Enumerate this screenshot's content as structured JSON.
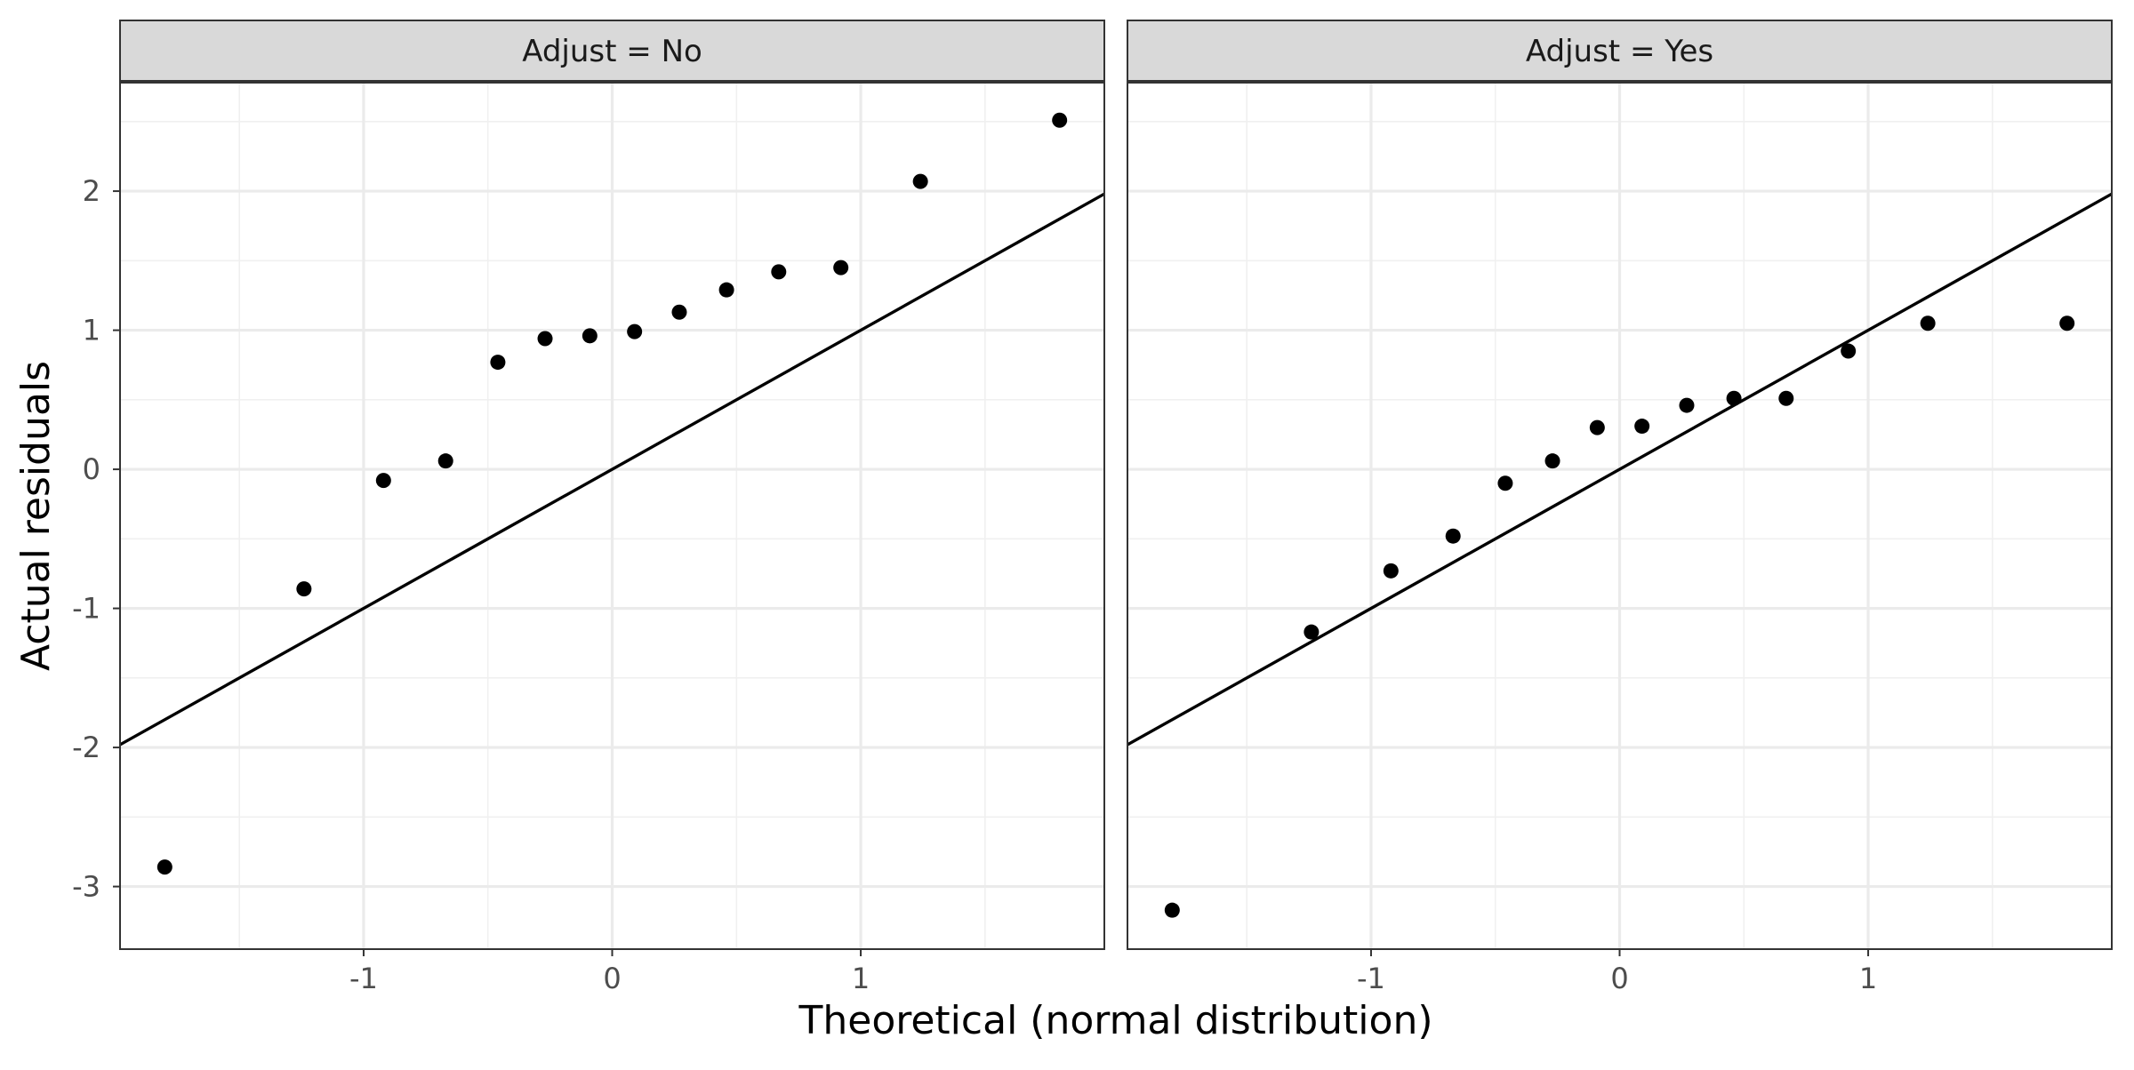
{
  "chart_data": {
    "type": "scatter",
    "xlabel": "Theoretical (normal distribution)",
    "ylabel": "Actual residuals",
    "xlim": [
      -1.98,
      1.98
    ],
    "ylim": [
      -3.45,
      2.78
    ],
    "x_major_ticks": [
      -1,
      0,
      1
    ],
    "y_major_ticks": [
      -3,
      -2,
      -1,
      0,
      1,
      2
    ],
    "grid": true,
    "reference_line": {
      "slope": 1,
      "intercept": 0
    },
    "panels": [
      {
        "strip_label": "Adjust = No",
        "points": [
          {
            "x": -1.8,
            "y": -2.86
          },
          {
            "x": -1.24,
            "y": -0.86
          },
          {
            "x": -0.92,
            "y": -0.08
          },
          {
            "x": -0.67,
            "y": 0.06
          },
          {
            "x": -0.46,
            "y": 0.77
          },
          {
            "x": -0.27,
            "y": 0.94
          },
          {
            "x": -0.09,
            "y": 0.96
          },
          {
            "x": 0.09,
            "y": 0.99
          },
          {
            "x": 0.27,
            "y": 1.13
          },
          {
            "x": 0.46,
            "y": 1.29
          },
          {
            "x": 0.67,
            "y": 1.42
          },
          {
            "x": 0.92,
            "y": 1.45
          },
          {
            "x": 1.24,
            "y": 2.07
          },
          {
            "x": 1.8,
            "y": 2.51
          }
        ]
      },
      {
        "strip_label": "Adjust = Yes",
        "points": [
          {
            "x": -1.8,
            "y": -3.17
          },
          {
            "x": -1.24,
            "y": -1.17
          },
          {
            "x": -0.92,
            "y": -0.73
          },
          {
            "x": -0.67,
            "y": -0.48
          },
          {
            "x": -0.46,
            "y": -0.1
          },
          {
            "x": -0.27,
            "y": 0.06
          },
          {
            "x": -0.09,
            "y": 0.3
          },
          {
            "x": 0.09,
            "y": 0.31
          },
          {
            "x": 0.27,
            "y": 0.46
          },
          {
            "x": 0.46,
            "y": 0.51
          },
          {
            "x": 0.67,
            "y": 0.51
          },
          {
            "x": 0.92,
            "y": 0.85
          },
          {
            "x": 1.24,
            "y": 1.05
          },
          {
            "x": 1.8,
            "y": 1.05
          }
        ]
      }
    ]
  }
}
